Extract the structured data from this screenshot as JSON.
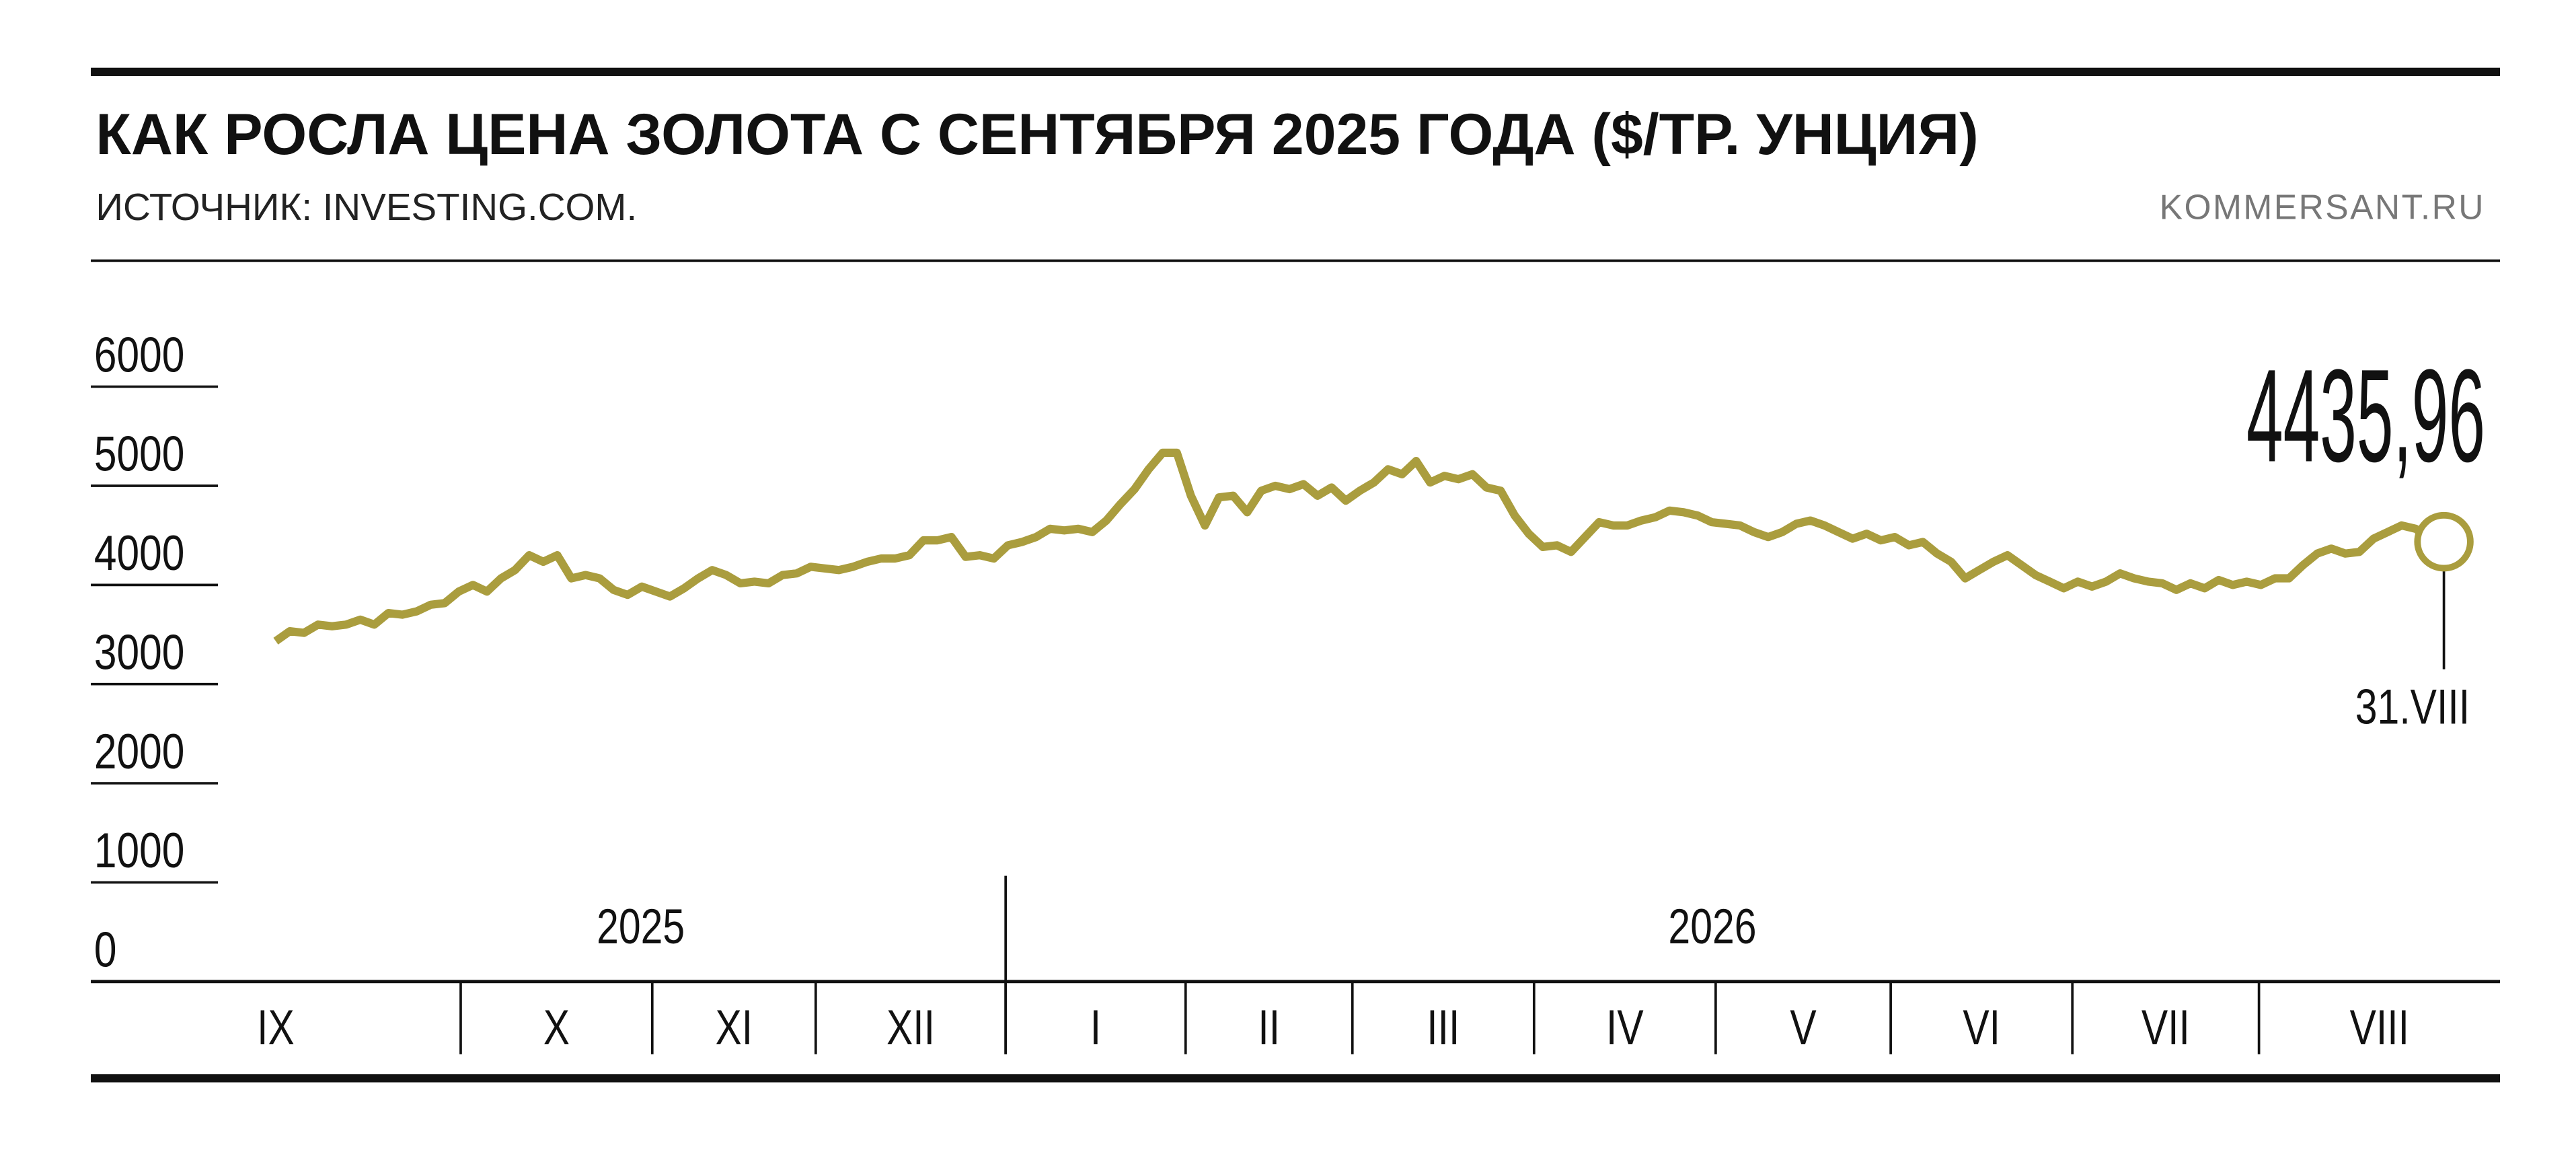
{
  "chart_data": {
    "type": "line",
    "title": "КАК РОСЛА ЦЕНА ЗОЛОТА С СЕНТЯБРЯ 2025 ГОДА ($/ТР. УНЦИЯ)",
    "subtitle": "ИСТОЧНИК: INVESTING.COM.",
    "brand": "KOMMERSANT.RU",
    "color": "#aa9d3e",
    "years": [
      "2025",
      "2026"
    ],
    "months": [
      "IX",
      "X",
      "XI",
      "XII",
      "I",
      "II",
      "III",
      "IV",
      "V",
      "VI",
      "VII",
      "VIII"
    ],
    "values": [
      3433,
      3533,
      3517,
      3600,
      3583,
      3600,
      3650,
      3600,
      3717,
      3700,
      3733,
      3800,
      3817,
      3933,
      4000,
      3933,
      4067,
      4150,
      4300,
      4233,
      4300,
      4067,
      4100,
      4067,
      3950,
      3900,
      3983,
      3933,
      3883,
      3967,
      4067,
      4150,
      4100,
      4017,
      4033,
      4017,
      4100,
      4117,
      4183,
      4167,
      4150,
      4183,
      4233,
      4267,
      4267,
      4300,
      4450,
      4450,
      4483,
      4283,
      4300,
      4267,
      4400,
      4433,
      4483,
      4567,
      4550,
      4567,
      4533,
      4650,
      4817,
      4967,
      5167,
      5333,
      5333,
      4900,
      4600,
      4883,
      4900,
      4733,
      4950,
      5000,
      4967,
      5017,
      4900,
      4983,
      4850,
      4950,
      5033,
      5167,
      5117,
      5250,
      5033,
      5100,
      5067,
      5117,
      4983,
      4950,
      4700,
      4517,
      4383,
      4400,
      4333,
      4483,
      4633,
      4600,
      4600,
      4650,
      4683,
      4750,
      4733,
      4700,
      4633,
      4617,
      4600,
      4533,
      4483,
      4533,
      4617,
      4650,
      4600,
      4533,
      4467,
      4517,
      4450,
      4483,
      4400,
      4433,
      4317,
      4233,
      4067,
      4150,
      4233,
      4300,
      4200,
      4100,
      4033,
      3967,
      4033,
      3983,
      4033,
      4117,
      4067,
      4033,
      4017,
      3950,
      4017,
      3967,
      4050,
      4000,
      4033,
      4000,
      4067,
      4067,
      4200,
      4317,
      4367,
      4317,
      4333,
      4467,
      4533,
      4600,
      4567,
      4467,
      4435.96
    ],
    "annotations": {
      "last_value": "4435,96",
      "last_date": "31.VIII"
    },
    "ylim": [
      0,
      6000
    ],
    "yticks": [
      0,
      1000,
      2000,
      3000,
      4000,
      5000,
      6000
    ]
  }
}
